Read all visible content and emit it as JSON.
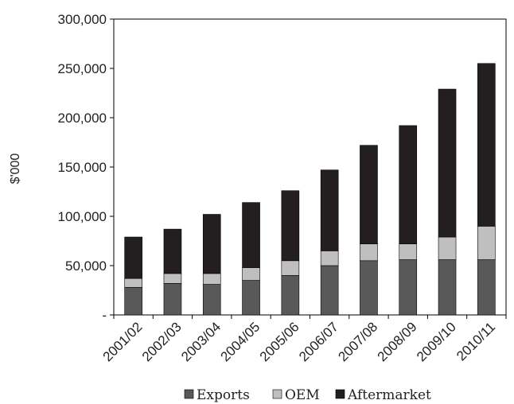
{
  "chart_data": {
    "type": "bar",
    "stacked": true,
    "categories": [
      "2001/02",
      "2002/03",
      "2003/04",
      "2004/05",
      "2005/06",
      "2006/07",
      "2007/08",
      "2008/09",
      "2009/10",
      "2010/11"
    ],
    "series": [
      {
        "name": "Exports",
        "color": "#595959",
        "values": [
          28000,
          32000,
          31000,
          35000,
          40000,
          50000,
          55000,
          56000,
          56000,
          56000
        ]
      },
      {
        "name": "OEM",
        "color": "#bfbfbf",
        "values": [
          9000,
          10000,
          11000,
          13000,
          15000,
          15000,
          17000,
          16000,
          23000,
          34000
        ]
      },
      {
        "name": "Aftermarket",
        "color": "#231f20",
        "values": [
          42000,
          45000,
          60000,
          66000,
          71000,
          82000,
          100000,
          120000,
          150000,
          165000
        ]
      }
    ],
    "title": "",
    "xlabel": "",
    "ylabel": "$'000",
    "ylim": [
      0,
      300000
    ],
    "ytick_values": [
      0,
      50000,
      100000,
      150000,
      200000,
      250000,
      300000
    ],
    "ytick_labels": [
      "-",
      "50,000",
      "100,000",
      "150,000",
      "200,000",
      "250,000",
      "300,000"
    ],
    "grid": false,
    "legend_position": "bottom"
  }
}
